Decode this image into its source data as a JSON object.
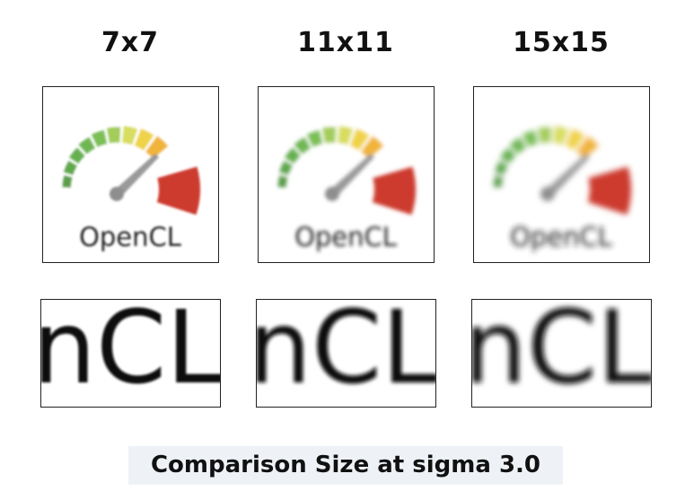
{
  "columns": [
    {
      "label": "7x7",
      "logo_text": "OpenCL",
      "zoom_text": "nCL"
    },
    {
      "label": "11x11",
      "logo_text": "OpenCL",
      "zoom_text": "nCL"
    },
    {
      "label": "15x15",
      "logo_text": "OpenCL",
      "zoom_text": "nCL"
    }
  ],
  "caption": "Comparison Size at sigma 3.0"
}
